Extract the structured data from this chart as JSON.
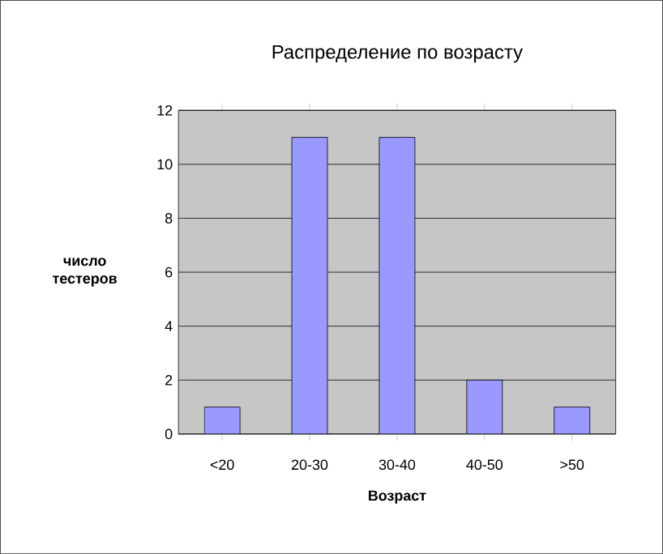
{
  "chart_data": {
    "type": "bar",
    "title": "Распределение по возрасту",
    "xlabel": "Возраст",
    "ylabel": "число тестеров",
    "categories": [
      "<20",
      "20-30",
      "30-40",
      "40-50",
      ">50"
    ],
    "values": [
      1,
      11,
      11,
      2,
      1
    ],
    "color": "#9999ff",
    "ylim": [
      0,
      12
    ],
    "yticks": [
      0,
      2,
      4,
      6,
      8,
      10,
      12
    ],
    "grid": "y"
  }
}
